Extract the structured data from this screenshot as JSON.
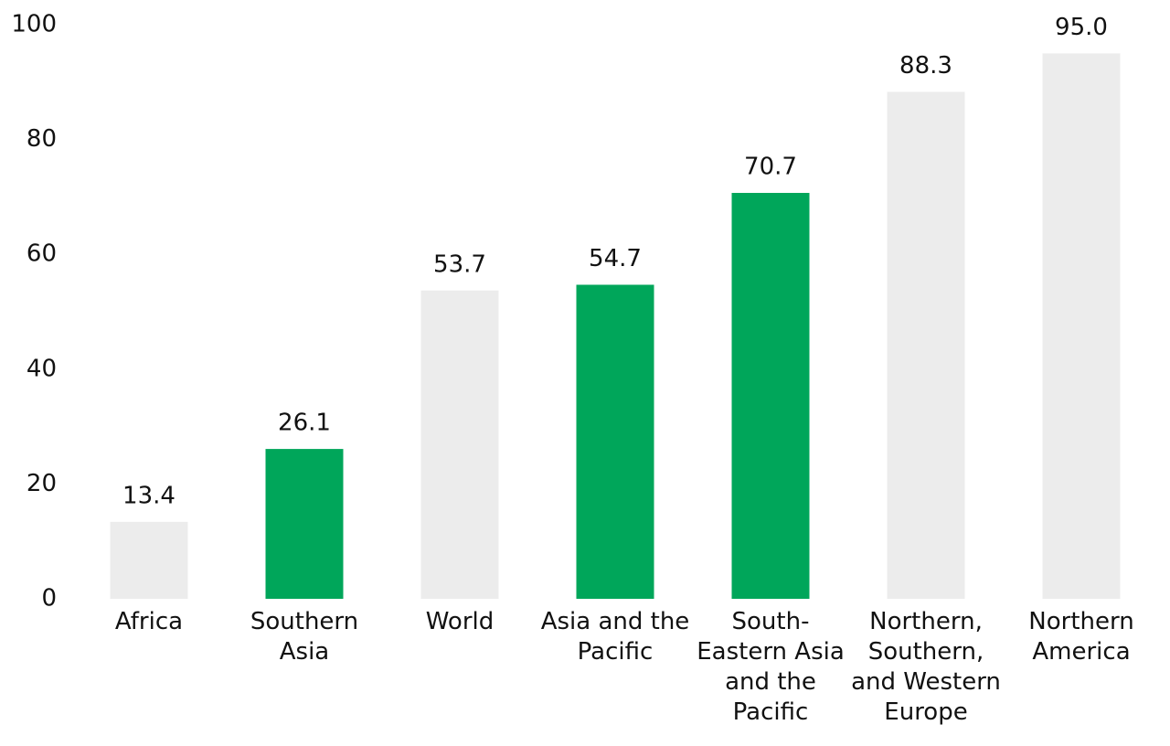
{
  "chart_data": {
    "type": "bar",
    "categories": [
      "Africa",
      "Southern Asia",
      "World",
      "Asia and the Pacific",
      "South-Eastern Asia and the Pacific",
      "Northern, Southern, and Western Europe",
      "Northern America"
    ],
    "values": [
      13.4,
      26.1,
      53.7,
      54.7,
      70.7,
      88.3,
      95.0
    ],
    "value_labels": [
      "13.4",
      "26.1",
      "53.7",
      "54.7",
      "70.7",
      "88.3",
      "95.0"
    ],
    "colors": [
      "#ececec",
      "#00a65a",
      "#ececec",
      "#00a65a",
      "#00a65a",
      "#ececec",
      "#ececec"
    ],
    "ylim": [
      0,
      100
    ],
    "yticks": [
      0,
      20,
      40,
      60,
      80,
      100
    ],
    "grid": false
  }
}
